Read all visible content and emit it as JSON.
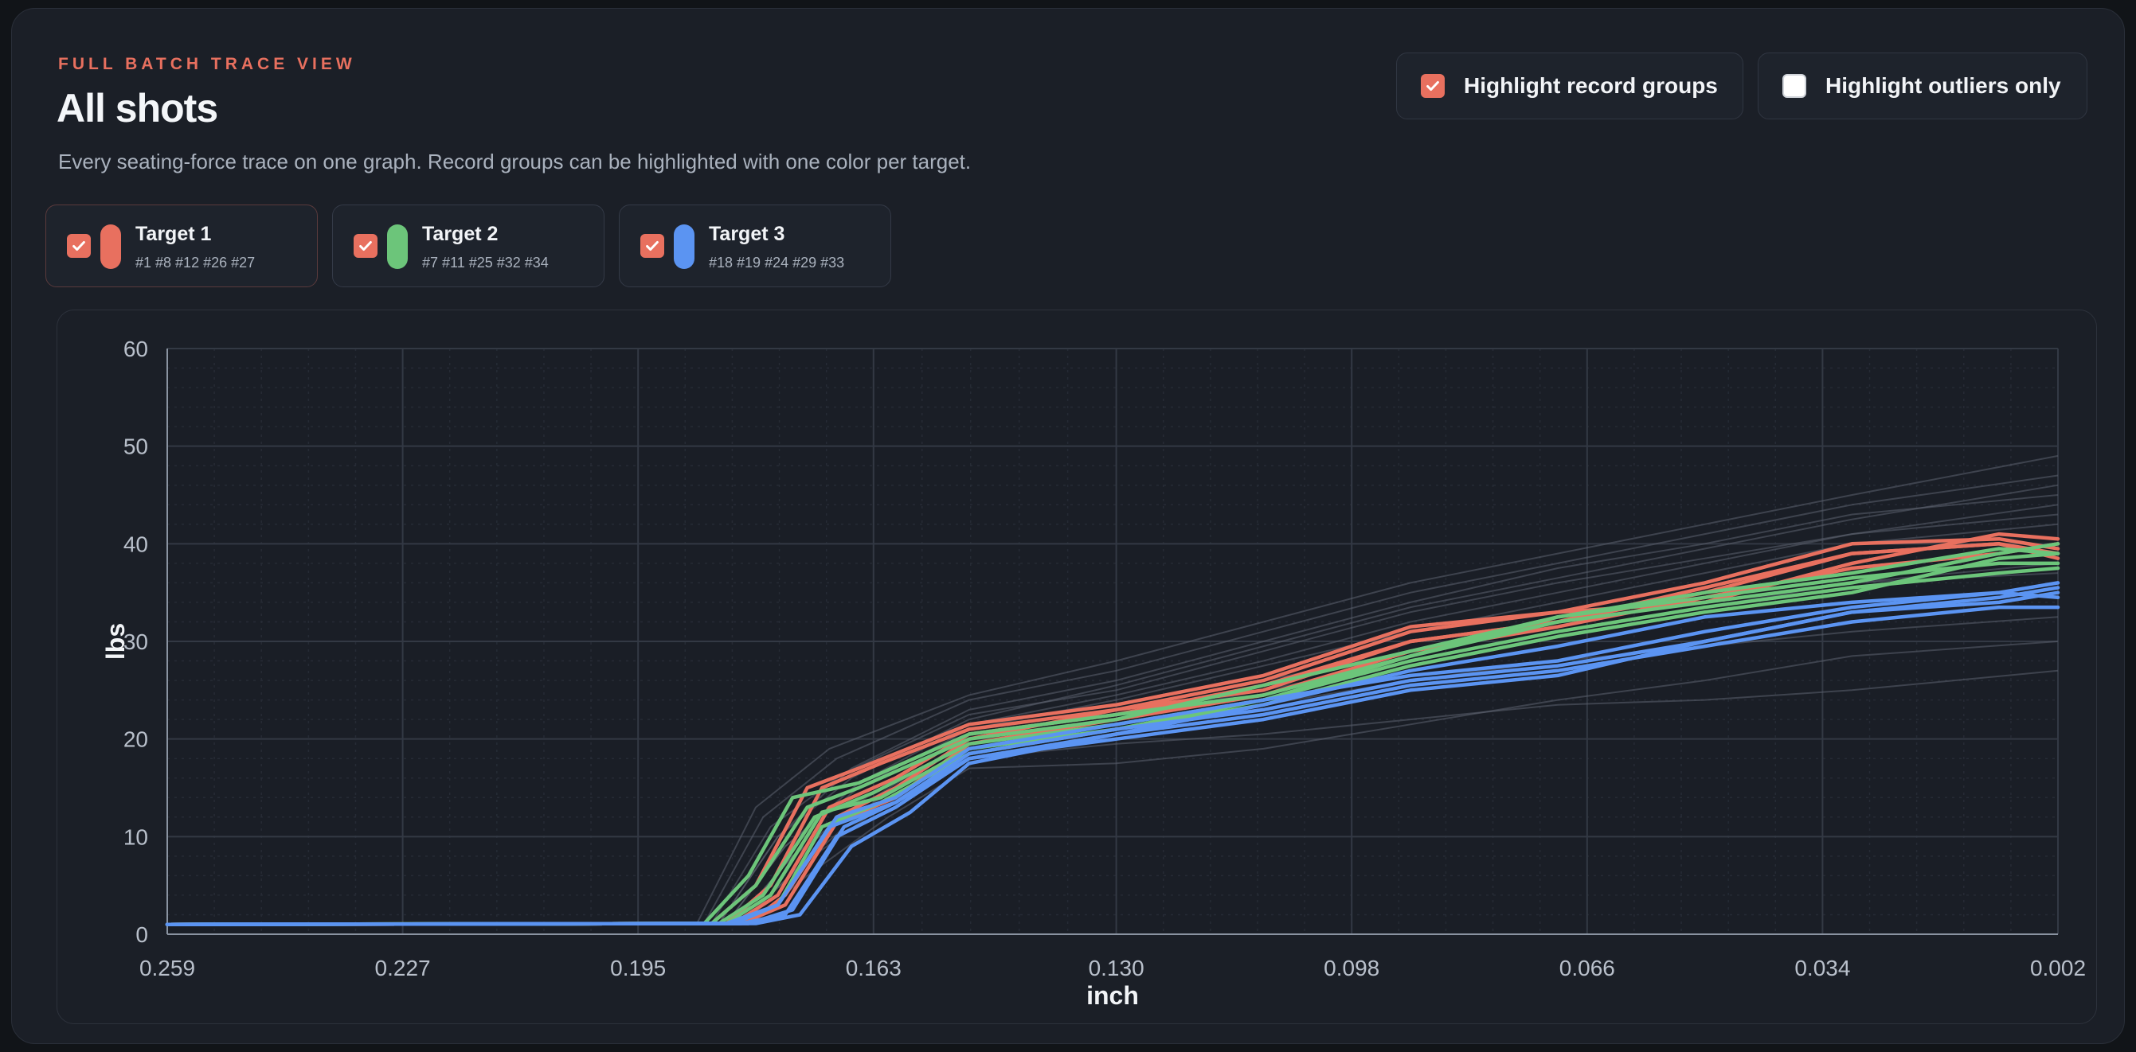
{
  "header": {
    "eyebrow": "FULL BATCH TRACE VIEW",
    "title": "All shots",
    "subtitle": "Every seating-force trace on one graph. Record groups can be highlighted with one color per target."
  },
  "toggles": [
    {
      "label": "Highlight record groups",
      "checked": true
    },
    {
      "label": "Highlight outliers only",
      "checked": false
    }
  ],
  "targets": [
    {
      "name": "Target 1",
      "shots": "#1 #8 #12 #26 #27",
      "color": "#e8705f",
      "checked": true
    },
    {
      "name": "Target 2",
      "shots": "#7 #11 #25 #32 #34",
      "color": "#6cc57a",
      "checked": true
    },
    {
      "name": "Target 3",
      "shots": "#18 #19 #24 #29 #33",
      "color": "#5b94f2",
      "checked": true
    }
  ],
  "colors": {
    "accent": "#e8705f",
    "target1": "#e8705f",
    "target2": "#6cc57a",
    "target3": "#5b94f2",
    "background_traces": "#5c6270"
  },
  "chart_data": {
    "type": "line",
    "xlabel": "inch",
    "ylabel": "lbs",
    "xlim": [
      0.259,
      0.002
    ],
    "ylim": [
      0,
      60
    ],
    "x_reversed": true,
    "xticks": [
      "0.259",
      "0.227",
      "0.195",
      "0.163",
      "0.130",
      "0.098",
      "0.066",
      "0.034",
      "0.002"
    ],
    "yticks": [
      "0",
      "10",
      "20",
      "30",
      "40",
      "50",
      "60"
    ],
    "grid": true,
    "series": [
      {
        "group": "Target 1",
        "color": "#e8705f",
        "x": [
          0.259,
          0.185,
          0.179,
          0.172,
          0.165,
          0.15,
          0.13,
          0.11,
          0.09,
          0.07,
          0.05,
          0.03,
          0.01,
          0.002
        ],
        "y": [
          1.0,
          1.1,
          5,
          15,
          17,
          21.5,
          23.5,
          26.5,
          31.5,
          33,
          36,
          40,
          40.5,
          39.5
        ]
      },
      {
        "group": "Target 1",
        "color": "#e8705f",
        "x": [
          0.259,
          0.182,
          0.176,
          0.169,
          0.16,
          0.15,
          0.13,
          0.11,
          0.09,
          0.07,
          0.05,
          0.03,
          0.01,
          0.002
        ],
        "y": [
          1.0,
          1.1,
          4,
          13,
          16,
          20.5,
          22.5,
          25.5,
          30,
          32,
          35,
          39,
          40,
          38.5
        ]
      },
      {
        "group": "Target 1",
        "color": "#e8705f",
        "x": [
          0.259,
          0.18,
          0.175,
          0.168,
          0.16,
          0.15,
          0.13,
          0.11,
          0.09,
          0.07,
          0.05,
          0.03,
          0.01,
          0.002
        ],
        "y": [
          1.0,
          1.1,
          4,
          12,
          15,
          20,
          23,
          26,
          31,
          33,
          34,
          38,
          41,
          40.5
        ]
      },
      {
        "group": "Target 1",
        "color": "#e8705f",
        "x": [
          0.259,
          0.181,
          0.175,
          0.168,
          0.16,
          0.15,
          0.13,
          0.11,
          0.09,
          0.07,
          0.05,
          0.03,
          0.01,
          0.002
        ],
        "y": [
          1.0,
          1.1,
          3,
          11.5,
          14,
          19.5,
          22,
          24.5,
          29,
          31.5,
          34.5,
          37.5,
          39,
          40
        ]
      },
      {
        "group": "Target 1",
        "color": "#e8705f",
        "x": [
          0.259,
          0.183,
          0.177,
          0.17,
          0.162,
          0.15,
          0.13,
          0.11,
          0.09,
          0.07,
          0.05,
          0.03,
          0.01,
          0.002
        ],
        "y": [
          1.0,
          1.1,
          5,
          15,
          17.5,
          21,
          23,
          25,
          30,
          32,
          35.5,
          39,
          40,
          39
        ]
      },
      {
        "group": "Target 2",
        "color": "#6cc57a",
        "x": [
          0.259,
          0.186,
          0.18,
          0.174,
          0.165,
          0.15,
          0.13,
          0.11,
          0.09,
          0.07,
          0.05,
          0.03,
          0.01,
          0.002
        ],
        "y": [
          1.0,
          1.1,
          6,
          14,
          15.5,
          20.5,
          22.5,
          24.5,
          28.5,
          32.5,
          35,
          37,
          39.5,
          39
        ]
      },
      {
        "group": "Target 2",
        "color": "#6cc57a",
        "x": [
          0.259,
          0.185,
          0.179,
          0.172,
          0.165,
          0.15,
          0.13,
          0.11,
          0.09,
          0.07,
          0.05,
          0.03,
          0.01,
          0.002
        ],
        "y": [
          1.0,
          1.1,
          5,
          13,
          15,
          20,
          22,
          25.5,
          29,
          32.5,
          34.5,
          36.5,
          38,
          38
        ]
      },
      {
        "group": "Target 2",
        "color": "#6cc57a",
        "x": [
          0.259,
          0.184,
          0.178,
          0.171,
          0.163,
          0.15,
          0.13,
          0.11,
          0.09,
          0.07,
          0.05,
          0.03,
          0.01,
          0.002
        ],
        "y": [
          1.0,
          1.1,
          4,
          12,
          14.5,
          19.5,
          21.5,
          24,
          28,
          31,
          33.5,
          35.5,
          37,
          37.5
        ]
      },
      {
        "group": "Target 2",
        "color": "#6cc57a",
        "x": [
          0.259,
          0.183,
          0.177,
          0.17,
          0.162,
          0.15,
          0.13,
          0.11,
          0.09,
          0.07,
          0.05,
          0.03,
          0.01,
          0.002
        ],
        "y": [
          1.0,
          1.1,
          4,
          12.5,
          14,
          19,
          21,
          23.5,
          27.5,
          30.5,
          33,
          35,
          38.5,
          39
        ]
      },
      {
        "group": "Target 2",
        "color": "#6cc57a",
        "x": [
          0.259,
          0.182,
          0.176,
          0.17,
          0.162,
          0.15,
          0.13,
          0.11,
          0.09,
          0.07,
          0.05,
          0.03,
          0.01,
          0.002
        ],
        "y": [
          1.0,
          1.1,
          3,
          11,
          13.5,
          18.5,
          21,
          24,
          28.5,
          32,
          34,
          36,
          39,
          40
        ]
      },
      {
        "group": "Target 3",
        "color": "#5b94f2",
        "x": [
          0.259,
          0.183,
          0.176,
          0.169,
          0.16,
          0.15,
          0.13,
          0.11,
          0.09,
          0.07,
          0.05,
          0.03,
          0.01,
          0.002
        ],
        "y": [
          1.0,
          1.1,
          3,
          11,
          13.5,
          18.5,
          21,
          23,
          26,
          27.5,
          30,
          33,
          34.5,
          35.5
        ]
      },
      {
        "group": "Target 3",
        "color": "#5b94f2",
        "x": [
          0.259,
          0.182,
          0.176,
          0.168,
          0.16,
          0.15,
          0.13,
          0.11,
          0.09,
          0.07,
          0.05,
          0.03,
          0.01,
          0.002
        ],
        "y": [
          1.0,
          1.1,
          3,
          12,
          14,
          19,
          21.5,
          24,
          26.5,
          28,
          31,
          33.5,
          35,
          36
        ]
      },
      {
        "group": "Target 3",
        "color": "#5b94f2",
        "x": [
          0.259,
          0.181,
          0.175,
          0.168,
          0.16,
          0.15,
          0.13,
          0.11,
          0.09,
          0.07,
          0.05,
          0.03,
          0.01,
          0.002
        ],
        "y": [
          1.0,
          1.1,
          2,
          10,
          13,
          18,
          20.5,
          22.5,
          25.5,
          27,
          29.5,
          32,
          33.5,
          33.5
        ]
      },
      {
        "group": "Target 3",
        "color": "#5b94f2",
        "x": [
          0.259,
          0.18,
          0.174,
          0.167,
          0.16,
          0.15,
          0.13,
          0.11,
          0.09,
          0.07,
          0.05,
          0.03,
          0.01,
          0.002
        ],
        "y": [
          1.0,
          1.1,
          2.5,
          11,
          13.5,
          18,
          20,
          22,
          25,
          26.5,
          30,
          33,
          34,
          35
        ]
      },
      {
        "group": "Target 3",
        "color": "#5b94f2",
        "x": [
          0.259,
          0.179,
          0.173,
          0.166,
          0.158,
          0.15,
          0.13,
          0.11,
          0.09,
          0.07,
          0.05,
          0.03,
          0.01,
          0.002
        ],
        "y": [
          1.0,
          1.1,
          2,
          9,
          12.5,
          17.5,
          20.5,
          23.5,
          27,
          29.5,
          32.5,
          34,
          35,
          34.5
        ]
      }
    ],
    "background_series": [
      {
        "x": [
          0.259,
          0.186,
          0.178,
          0.168,
          0.15,
          0.13,
          0.11,
          0.09,
          0.07,
          0.05,
          0.03,
          0.002
        ],
        "y": [
          1.0,
          1.1,
          12,
          18,
          24,
          27,
          31,
          35,
          38,
          41,
          44,
          47
        ]
      },
      {
        "x": [
          0.259,
          0.184,
          0.176,
          0.166,
          0.15,
          0.13,
          0.11,
          0.09,
          0.07,
          0.05,
          0.03,
          0.002
        ],
        "y": [
          1.0,
          1.1,
          10,
          17,
          23,
          26,
          30,
          34,
          37.5,
          40,
          43,
          45
        ]
      },
      {
        "x": [
          0.259,
          0.185,
          0.177,
          0.167,
          0.15,
          0.13,
          0.11,
          0.09,
          0.07,
          0.05,
          0.03,
          0.002
        ],
        "y": [
          1.0,
          1.1,
          11,
          16.5,
          22.5,
          25,
          29,
          33,
          36,
          38.5,
          41,
          43
        ]
      },
      {
        "x": [
          0.259,
          0.183,
          0.175,
          0.165,
          0.15,
          0.13,
          0.11,
          0.09,
          0.07,
          0.05,
          0.03,
          0.002
        ],
        "y": [
          1.0,
          1.1,
          9,
          15,
          21,
          24,
          27.5,
          31,
          34,
          37,
          40,
          42
        ]
      },
      {
        "x": [
          0.259,
          0.187,
          0.179,
          0.169,
          0.15,
          0.13,
          0.11,
          0.09,
          0.07,
          0.05,
          0.03,
          0.002
        ],
        "y": [
          1.0,
          1.1,
          13,
          19,
          24.5,
          28,
          32,
          36,
          39,
          42,
          45,
          49
        ]
      },
      {
        "x": [
          0.259,
          0.182,
          0.174,
          0.164,
          0.15,
          0.13,
          0.11,
          0.09,
          0.07,
          0.05,
          0.03,
          0.002
        ],
        "y": [
          1.0,
          1.1,
          8,
          14,
          19.5,
          22,
          25,
          28,
          31,
          33.5,
          36,
          38
        ]
      },
      {
        "x": [
          0.259,
          0.181,
          0.173,
          0.162,
          0.15,
          0.13,
          0.11,
          0.09,
          0.07,
          0.05,
          0.03,
          0.002
        ],
        "y": [
          1.0,
          1.1,
          7,
          13,
          18,
          19.5,
          20.5,
          22,
          23.5,
          24,
          25,
          27
        ]
      },
      {
        "x": [
          0.259,
          0.18,
          0.172,
          0.161,
          0.15,
          0.13,
          0.11,
          0.09,
          0.07,
          0.05,
          0.03,
          0.002
        ],
        "y": [
          1.0,
          1.1,
          6,
          12,
          17,
          17.5,
          19,
          21.5,
          24,
          26,
          28.5,
          30
        ]
      },
      {
        "x": [
          0.259,
          0.182,
          0.174,
          0.163,
          0.15,
          0.13,
          0.11,
          0.09,
          0.07,
          0.05,
          0.03,
          0.002
        ],
        "y": [
          1.0,
          1.1,
          8,
          14,
          20,
          23,
          26,
          29,
          32,
          34,
          36,
          37
        ]
      },
      {
        "x": [
          0.259,
          0.184,
          0.176,
          0.166,
          0.15,
          0.13,
          0.11,
          0.09,
          0.07,
          0.05,
          0.03,
          0.002
        ],
        "y": [
          1.0,
          1.1,
          10,
          16,
          22,
          25.5,
          29.5,
          33.5,
          36.5,
          39.5,
          42.5,
          46
        ]
      },
      {
        "x": [
          0.259,
          0.183,
          0.175,
          0.165,
          0.15,
          0.13,
          0.11,
          0.09,
          0.07,
          0.05,
          0.03,
          0.002
        ],
        "y": [
          1.0,
          1.1,
          9,
          15.5,
          21.5,
          24.5,
          28,
          32,
          35,
          38,
          41,
          44
        ]
      },
      {
        "x": [
          0.259,
          0.181,
          0.173,
          0.163,
          0.15,
          0.13,
          0.11,
          0.09,
          0.07,
          0.05,
          0.03,
          0.002
        ],
        "y": [
          1.0,
          1.1,
          7,
          13.5,
          19,
          21,
          23.5,
          26,
          28,
          29.5,
          31,
          32.5
        ]
      }
    ]
  }
}
